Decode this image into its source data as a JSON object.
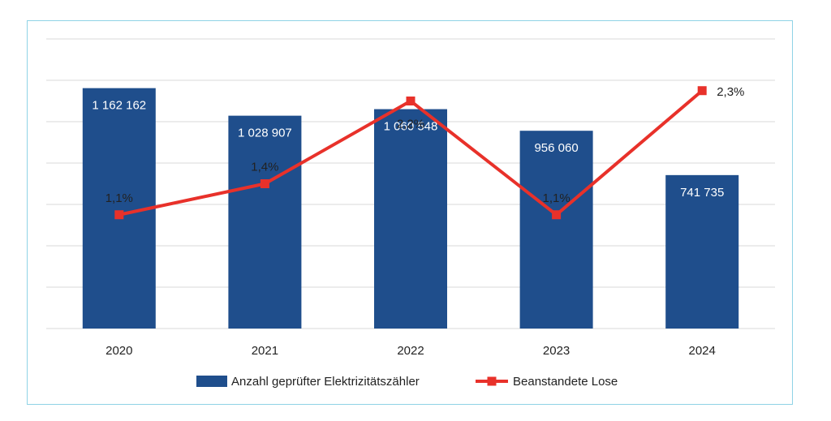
{
  "chart_data": {
    "type": "bar",
    "categories": [
      "2020",
      "2021",
      "2022",
      "2023",
      "2024"
    ],
    "series": [
      {
        "name": "Anzahl geprüfter Elektrizitätszähler",
        "kind": "bar",
        "axis": "left",
        "values": [
          1162162,
          1028907,
          1060548,
          956060,
          741735
        ],
        "labels": [
          "1 162 162",
          "1 028 907",
          "1 060 548",
          "956 060",
          "741 735"
        ],
        "color": "#1f4e8c"
      },
      {
        "name": "Beanstandete Lose",
        "kind": "line",
        "axis": "right",
        "values": [
          1.1,
          1.4,
          2.2,
          1.1,
          2.3
        ],
        "labels": [
          "1,1%",
          "1,4%",
          "2,2%",
          "1,1%",
          "2,3%"
        ],
        "color": "#e8312a"
      }
    ],
    "title": "",
    "xlabel": "",
    "ylabel": "",
    "ylim": [
      0,
      1400000
    ],
    "y2lim": [
      0,
      2.8
    ],
    "grid": true,
    "legend_position": "bottom",
    "axis_tick_labels_y": false
  },
  "colors": {
    "bar": "#1f4e8c",
    "line": "#e8312a",
    "grid": "#d9d9d9",
    "frame": "#8fd3e6"
  }
}
